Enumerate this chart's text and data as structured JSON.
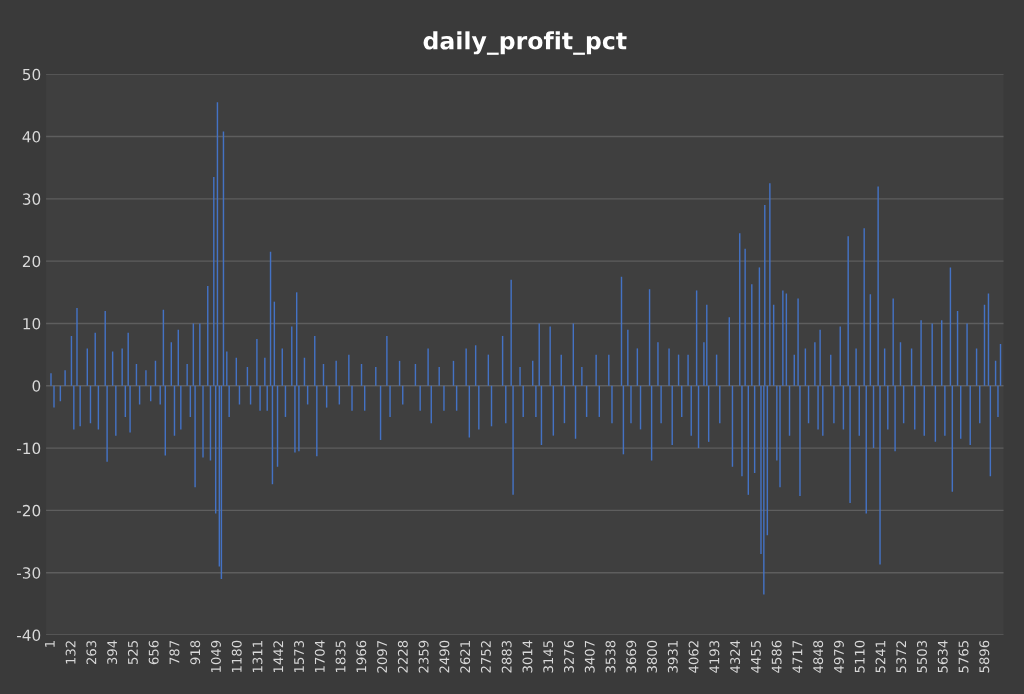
{
  "chart_data": {
    "type": "bar",
    "title": "daily_profit_pct",
    "x": [
      1,
      20,
      60,
      90,
      130,
      145,
      165,
      185,
      230,
      250,
      280,
      300,
      343,
      355,
      390,
      410,
      450,
      470,
      488,
      500,
      540,
      560,
      600,
      630,
      660,
      690,
      710,
      722,
      760,
      780,
      804,
      820,
      860,
      880,
      899,
      910,
      940,
      960,
      990,
      1007,
      1028,
      1040,
      1051,
      1063,
      1076,
      1089,
      1110,
      1125,
      1170,
      1190,
      1240,
      1260,
      1300,
      1320,
      1350,
      1365,
      1386,
      1398,
      1410,
      1430,
      1460,
      1480,
      1520,
      1540,
      1551,
      1565,
      1600,
      1620,
      1665,
      1678,
      1720,
      1740,
      1800,
      1820,
      1880,
      1900,
      1960,
      1980,
      2050,
      2080,
      2120,
      2140,
      2200,
      2220,
      2300,
      2330,
      2380,
      2400,
      2450,
      2480,
      2540,
      2560,
      2620,
      2640,
      2680,
      2700,
      2760,
      2780,
      2850,
      2870,
      2904,
      2916,
      2960,
      2980,
      3040,
      3060,
      3081,
      3095,
      3150,
      3170,
      3220,
      3240,
      3296,
      3310,
      3350,
      3380,
      3440,
      3460,
      3520,
      3540,
      3600,
      3612,
      3640,
      3660,
      3700,
      3720,
      3777,
      3790,
      3830,
      3850,
      3900,
      3920,
      3960,
      3980,
      4020,
      4040,
      4074,
      4086,
      4120,
      4138,
      4150,
      4200,
      4220,
      4280,
      4300,
      4346,
      4360,
      4380,
      4400,
      4422,
      4440,
      4470,
      4480,
      4498,
      4504,
      4520,
      4536,
      4560,
      4580,
      4600,
      4618,
      4640,
      4660,
      4690,
      4714,
      4726,
      4760,
      4780,
      4820,
      4840,
      4853,
      4870,
      4920,
      4940,
      4980,
      5000,
      5030,
      5042,
      5080,
      5100,
      5131,
      5144,
      5170,
      5190,
      5219,
      5231,
      5260,
      5280,
      5314,
      5326,
      5360,
      5380,
      5430,
      5450,
      5490,
      5510,
      5560,
      5580,
      5620,
      5640,
      5675,
      5687,
      5720,
      5740,
      5780,
      5800,
      5840,
      5860,
      5890,
      5915,
      5927,
      5960,
      5975,
      5991
    ],
    "values": [
      2,
      -3.5,
      -2.5,
      2.5,
      8,
      -7,
      12.5,
      -6.5,
      6,
      -6,
      8.5,
      -7,
      12,
      -12.2,
      5.5,
      -8,
      6,
      -5,
      8.5,
      -7.5,
      3.5,
      -3,
      2.5,
      -2.5,
      4,
      -3,
      12.2,
      -11.2,
      7,
      -8,
      9,
      -7,
      3.5,
      -5,
      10,
      -16.3,
      10,
      -11.5,
      16,
      -12,
      33.5,
      -20.5,
      45.5,
      -29,
      -31,
      40.8,
      5.5,
      -5,
      4.5,
      -3,
      3,
      -3,
      7.5,
      -4,
      4.5,
      -4,
      21.5,
      -15.8,
      13.5,
      -13,
      6,
      -5,
      9.5,
      -10.7,
      15,
      -10.5,
      4.5,
      -3,
      8,
      -11.3,
      3.5,
      -3.5,
      4,
      -3,
      5,
      -4,
      3.5,
      -4,
      3,
      -8.7,
      8,
      -5,
      4,
      -3,
      3.5,
      -4,
      6,
      -6,
      3,
      -4,
      4,
      -4,
      6,
      -8.3,
      6.5,
      -7,
      5,
      -6.5,
      8,
      -6,
      17,
      -17.5,
      3,
      -5,
      4,
      -5,
      10,
      -9.5,
      9.5,
      -8,
      5,
      -6,
      10,
      -8.5,
      3,
      -5,
      5,
      -5,
      5,
      -6,
      17.5,
      -11,
      9,
      -6,
      6,
      -7,
      15.5,
      -12,
      7,
      -6,
      6,
      -9.5,
      5,
      -5,
      5,
      -8,
      15.3,
      -10,
      7,
      13,
      -9,
      5,
      -6,
      11,
      -13,
      24.5,
      -14.5,
      22,
      -17.5,
      16.3,
      -14,
      19,
      -27,
      -33.5,
      29,
      -24,
      32.5,
      13,
      -12,
      -16.3,
      15.3,
      14.8,
      -8,
      5,
      14,
      -17.7,
      6,
      -6,
      7,
      -7,
      9,
      -8,
      5,
      -6,
      9.5,
      -7,
      24,
      -18.8,
      6,
      -8,
      25.3,
      -20.5,
      14.7,
      -10,
      32,
      -28.7,
      6,
      -7,
      14,
      -10.5,
      7,
      -6,
      6,
      -7,
      10.5,
      -8,
      10,
      -9,
      10.5,
      -8,
      19,
      -17,
      12,
      -8.5,
      10,
      -9.5,
      6,
      -6,
      13,
      14.8,
      -14.5,
      4,
      -5,
      6.7
    ],
    "color": "#4472c4",
    "xlim": [
      -30,
      6010
    ],
    "xticks": [
      1,
      132,
      263,
      394,
      525,
      656,
      787,
      918,
      1049,
      1180,
      1311,
      1442,
      1573,
      1704,
      1835,
      1966,
      2097,
      2228,
      2359,
      2490,
      2621,
      2752,
      2883,
      3014,
      3145,
      3276,
      3407,
      3538,
      3669,
      3800,
      3931,
      4062,
      4193,
      4324,
      4455,
      4586,
      4717,
      4848,
      4979,
      5110,
      5241,
      5372,
      5503,
      5634,
      5765,
      5896
    ],
    "ylim": [
      -40,
      50
    ],
    "yticks": [
      -40,
      -30,
      -20,
      -10,
      0,
      10,
      20,
      30,
      40,
      50
    ],
    "grid": "y"
  }
}
